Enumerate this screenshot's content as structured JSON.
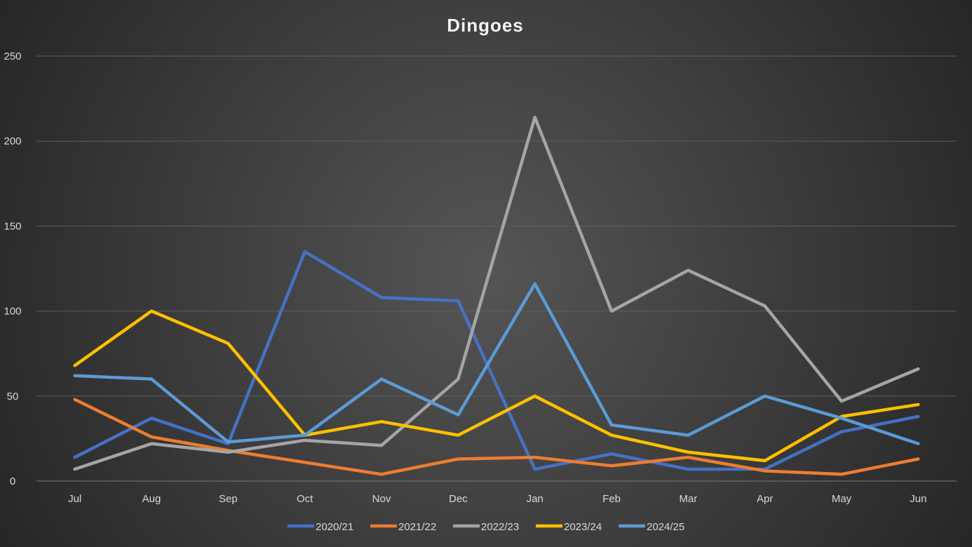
{
  "chart_data": {
    "type": "line",
    "title": "Dingoes",
    "xlabel": "",
    "ylabel": "",
    "categories": [
      "Jul",
      "Aug",
      "Sep",
      "Oct",
      "Nov",
      "Dec",
      "Jan",
      "Feb",
      "Mar",
      "Apr",
      "May",
      "Jun"
    ],
    "ylim": [
      0,
      250
    ],
    "yticks": [
      0,
      50,
      100,
      150,
      200,
      250
    ],
    "grid": true,
    "legend_position": "bottom",
    "series": [
      {
        "name": "2020/21",
        "color": "#4472c4",
        "values": [
          14,
          37,
          22,
          135,
          108,
          106,
          7,
          16,
          7,
          7,
          29,
          38
        ]
      },
      {
        "name": "2021/22",
        "color": "#ed7d31",
        "values": [
          48,
          26,
          18,
          11,
          4,
          13,
          14,
          9,
          14,
          6,
          4,
          13
        ]
      },
      {
        "name": "2022/23",
        "color": "#a5a5a5",
        "values": [
          7,
          22,
          17,
          24,
          21,
          60,
          214,
          100,
          124,
          103,
          47,
          66
        ]
      },
      {
        "name": "2023/24",
        "color": "#ffc000",
        "values": [
          68,
          100,
          81,
          27,
          35,
          27,
          50,
          27,
          17,
          12,
          38,
          45
        ]
      },
      {
        "name": "2024/25",
        "color": "#5b9bd5",
        "values": [
          62,
          60,
          23,
          27,
          60,
          39,
          116,
          33,
          27,
          50,
          37,
          22
        ]
      }
    ]
  }
}
